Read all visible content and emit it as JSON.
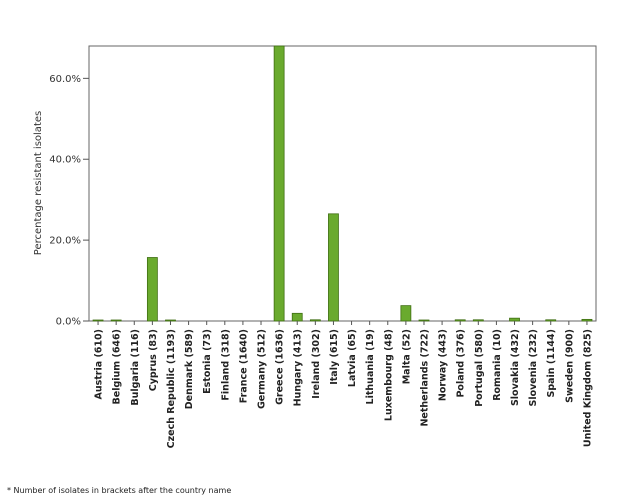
{
  "chart_data": {
    "type": "bar",
    "ylabel": "Percentage resistant isolates",
    "ylim": [
      0,
      68
    ],
    "yticks": [
      {
        "value": 0,
        "label": "0.0%"
      },
      {
        "value": 20,
        "label": "20.0%"
      },
      {
        "value": 40,
        "label": "40.0%"
      },
      {
        "value": 60,
        "label": "60.0%"
      }
    ],
    "bar_color": "#6aaa2e",
    "bar_stroke": "#3f6e12",
    "categories": [
      "Austria (610)",
      "Belgium (646)",
      "Bulgaria (116)",
      "Cyprus (83)",
      "Czech Republic (1193)",
      "Denmark (589)",
      "Estonia (73)",
      "Finland (318)",
      "France (1640)",
      "Germany (512)",
      "Greece (1636)",
      "Hungary (413)",
      "Ireland (302)",
      "Italy (615)",
      "Latvia (65)",
      "Lithuania (19)",
      "Luxembourg (48)",
      "Malta (52)",
      "Netherlands (722)",
      "Norway (443)",
      "Poland (376)",
      "Portugal (580)",
      "Romania (10)",
      "Slovakia (432)",
      "Slovenia (232)",
      "Spain (1144)",
      "Sweden (900)",
      "United Kingdom (825)"
    ],
    "values": [
      0.2,
      0.2,
      0,
      15.7,
      0.2,
      0,
      0,
      0,
      0,
      0,
      68,
      1.9,
      0.3,
      26.5,
      0,
      0,
      0,
      3.8,
      0.1,
      0,
      0.3,
      0.3,
      0,
      0.7,
      0,
      0.3,
      0,
      0.4
    ],
    "grid": false,
    "legend": "none"
  },
  "footnote": "* Number of isolates in brackets after the country name"
}
